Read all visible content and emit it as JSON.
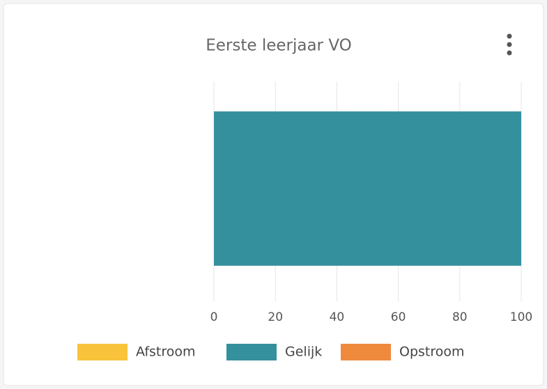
{
  "chart_data": {
    "type": "bar",
    "orientation": "horizontal",
    "stacked": true,
    "title": "Eerste leerjaar VO",
    "categories": [
      null
    ],
    "series": [
      {
        "name": "Afstroom",
        "color": "#f9c33c",
        "values": [
          0
        ]
      },
      {
        "name": "Gelijk",
        "color": "#35909e",
        "values": [
          100
        ]
      },
      {
        "name": "Opstroom",
        "color": "#ef8a3d",
        "values": [
          0
        ]
      }
    ],
    "xlim": [
      0,
      100
    ],
    "xticks": [
      0,
      20,
      40,
      60,
      80,
      100
    ],
    "grid": true,
    "legend": "bottom"
  }
}
